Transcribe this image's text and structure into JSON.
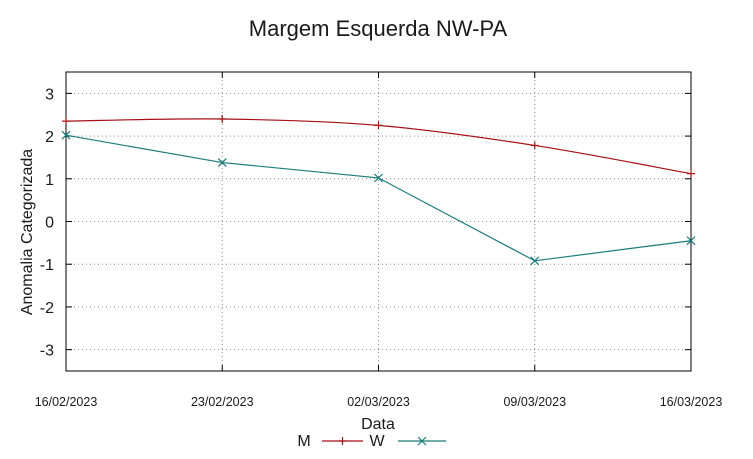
{
  "chart_data": {
    "type": "line",
    "title": "Margem Esquerda NW-PA",
    "xlabel": "Data",
    "ylabel": "Anomalia Categorizada",
    "x": [
      "16/02/2023",
      "23/02/2023",
      "02/03/2023",
      "09/03/2023",
      "16/03/2023"
    ],
    "yticks": [
      3,
      2,
      1,
      0,
      -1,
      -2,
      -3
    ],
    "ylim": [
      -3.5,
      3.5
    ],
    "grid": true,
    "legend_position": "bottom-center",
    "series": [
      {
        "name": "M",
        "color": "#a50f15",
        "marker": "plus",
        "values": [
          2.35,
          2.4,
          2.25,
          1.78,
          1.12
        ]
      },
      {
        "name": "W",
        "color": "#1b7b7b",
        "marker": "cross",
        "values": [
          2.02,
          1.38,
          1.02,
          -0.92,
          -0.45
        ]
      }
    ]
  }
}
